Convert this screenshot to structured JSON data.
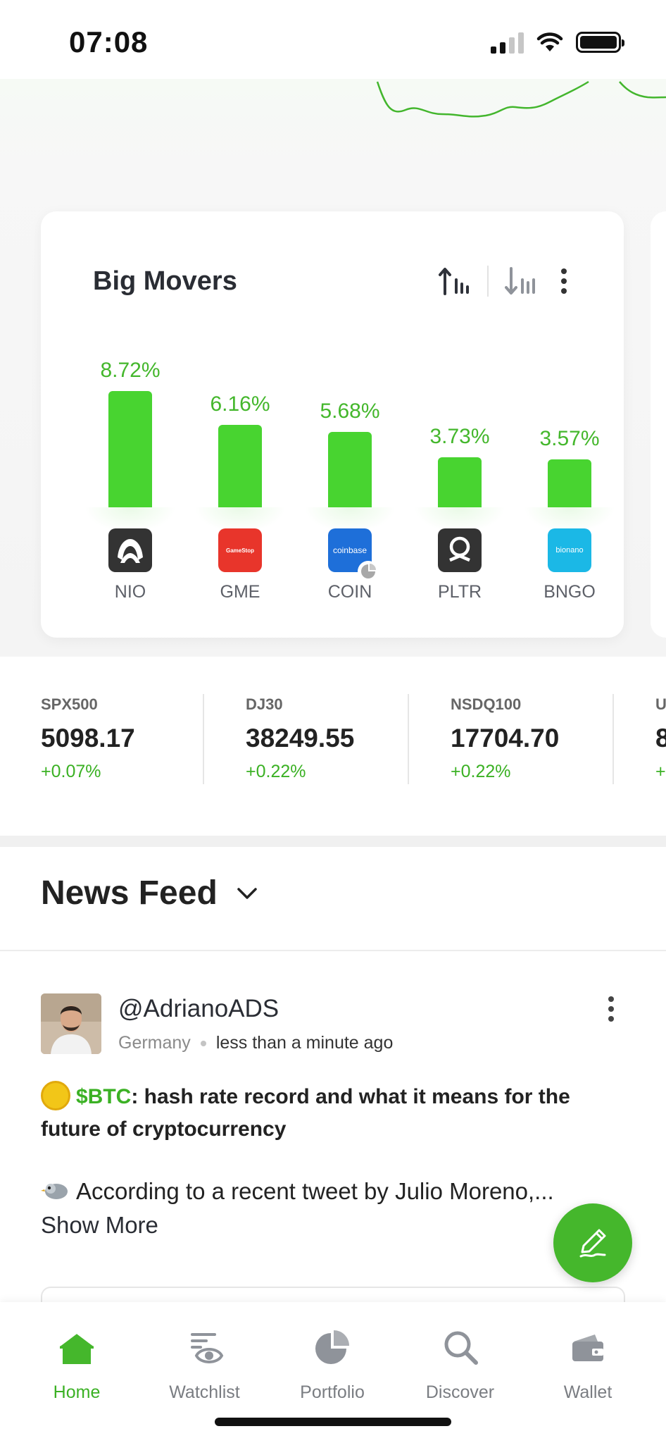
{
  "status_bar": {
    "time": "07:08"
  },
  "big_movers": {
    "title": "Big Movers",
    "items": [
      {
        "ticker": "NIO",
        "change": "8.72%",
        "value": 8.72,
        "logo_color": "#333333"
      },
      {
        "ticker": "GME",
        "change": "6.16%",
        "value": 6.16,
        "logo_color": "#e8352b",
        "logo_text": "GameStop"
      },
      {
        "ticker": "COIN",
        "change": "5.68%",
        "value": 5.68,
        "logo_color": "#1e6fd9",
        "logo_text": "coinbase"
      },
      {
        "ticker": "PLTR",
        "change": "3.73%",
        "value": 3.73,
        "logo_color": "#333333"
      },
      {
        "ticker": "BNGO",
        "change": "3.57%",
        "value": 3.57,
        "logo_color": "#1bb8e6",
        "logo_text": "bionano"
      }
    ]
  },
  "indices": [
    {
      "name": "SPX500",
      "value": "5098.17",
      "change": "+0.07%"
    },
    {
      "name": "DJ30",
      "value": "38249.55",
      "change": "+0.22%"
    },
    {
      "name": "NSDQ100",
      "value": "17704.70",
      "change": "+0.22%"
    },
    {
      "name": "U",
      "value": "8",
      "change": "+"
    }
  ],
  "news_feed": {
    "title": "News Feed",
    "post": {
      "username": "@AdrianoADS",
      "location": "Germany",
      "time": "less than a minute ago",
      "cashtag": "$BTC",
      "headline": ": hash rate record and what it means for the future of cryptocurrency",
      "body": "According to a recent tweet by Julio Moreno,...",
      "show_more": "Show More"
    }
  },
  "bottom_nav": [
    {
      "label": "Home",
      "icon": "home-icon",
      "active": true
    },
    {
      "label": "Watchlist",
      "icon": "watchlist-icon",
      "active": false
    },
    {
      "label": "Portfolio",
      "icon": "portfolio-icon",
      "active": false
    },
    {
      "label": "Discover",
      "icon": "search-icon",
      "active": false
    },
    {
      "label": "Wallet",
      "icon": "wallet-icon",
      "active": false
    }
  ],
  "colors": {
    "accent": "#45b72c",
    "bar": "#48d430",
    "positive": "#3bb124"
  }
}
